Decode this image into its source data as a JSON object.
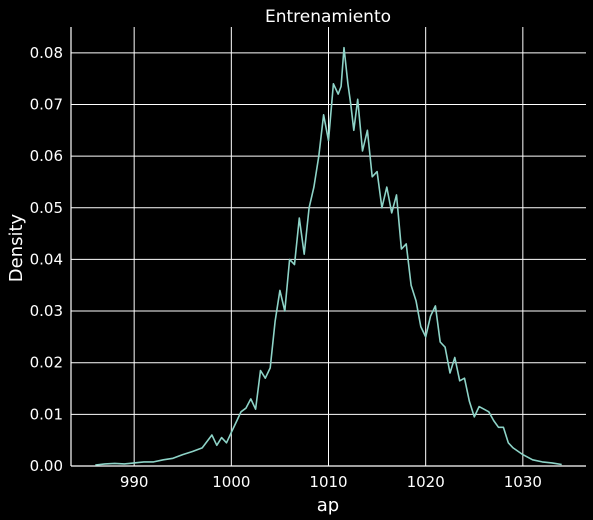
{
  "chart_data": {
    "type": "line",
    "title": "Entrenamiento",
    "xlabel": "ap",
    "ylabel": "Density",
    "xlim": [
      983.5,
      1036.5
    ],
    "ylim": [
      0.0,
      0.085
    ],
    "xticks": [
      990,
      1000,
      1010,
      1020,
      1030
    ],
    "yticks": [
      0.0,
      0.01,
      0.02,
      0.03,
      0.04,
      0.05,
      0.06,
      0.07,
      0.08
    ],
    "xtick_labels": [
      "990",
      "1000",
      "1010",
      "1020",
      "1030"
    ],
    "ytick_labels": [
      "0.00",
      "0.01",
      "0.02",
      "0.03",
      "0.04",
      "0.05",
      "0.06",
      "0.07",
      "0.08"
    ],
    "grid": true,
    "background": "#000000",
    "series": [
      {
        "color": "#8dd3c7",
        "x": [
          986,
          987,
          988,
          989,
          990,
          991,
          992,
          993,
          994,
          995,
          996,
          997,
          998,
          998.5,
          999,
          999.5,
          1000,
          1000.5,
          1001,
          1001.5,
          1002,
          1002.5,
          1003,
          1003.5,
          1004,
          1004.5,
          1005,
          1005.5,
          1006,
          1006.5,
          1007,
          1007.5,
          1008,
          1008.5,
          1009,
          1009.5,
          1010,
          1010.5,
          1011,
          1011.3,
          1011.6,
          1012,
          1012.3,
          1012.6,
          1013,
          1013.5,
          1014,
          1014.5,
          1015,
          1015.5,
          1016,
          1016.5,
          1017,
          1017.5,
          1018,
          1018.5,
          1019,
          1019.5,
          1020,
          1020.5,
          1021,
          1021.5,
          1022,
          1022.5,
          1023,
          1023.5,
          1024,
          1024.5,
          1025,
          1025.5,
          1026,
          1026.5,
          1027,
          1027.5,
          1028,
          1028.5,
          1029,
          1030,
          1031,
          1032,
          1033,
          1034
        ],
        "values": [
          0.0002,
          0.0004,
          0.0005,
          0.0004,
          0.0006,
          0.0008,
          0.0008,
          0.0012,
          0.0015,
          0.0022,
          0.0028,
          0.0035,
          0.006,
          0.004,
          0.0055,
          0.0045,
          0.0065,
          0.0085,
          0.0105,
          0.0112,
          0.013,
          0.011,
          0.0185,
          0.017,
          0.019,
          0.028,
          0.034,
          0.03,
          0.04,
          0.039,
          0.048,
          0.041,
          0.05,
          0.054,
          0.06,
          0.068,
          0.063,
          0.074,
          0.072,
          0.0735,
          0.081,
          0.074,
          0.07,
          0.065,
          0.071,
          0.061,
          0.065,
          0.056,
          0.057,
          0.05,
          0.054,
          0.049,
          0.0525,
          0.042,
          0.043,
          0.035,
          0.032,
          0.027,
          0.025,
          0.029,
          0.031,
          0.024,
          0.023,
          0.018,
          0.021,
          0.0165,
          0.017,
          0.0125,
          0.0095,
          0.0115,
          0.011,
          0.0105,
          0.0088,
          0.0075,
          0.0075,
          0.0045,
          0.0035,
          0.0022,
          0.0012,
          0.0008,
          0.0006,
          0.0003
        ]
      }
    ]
  }
}
